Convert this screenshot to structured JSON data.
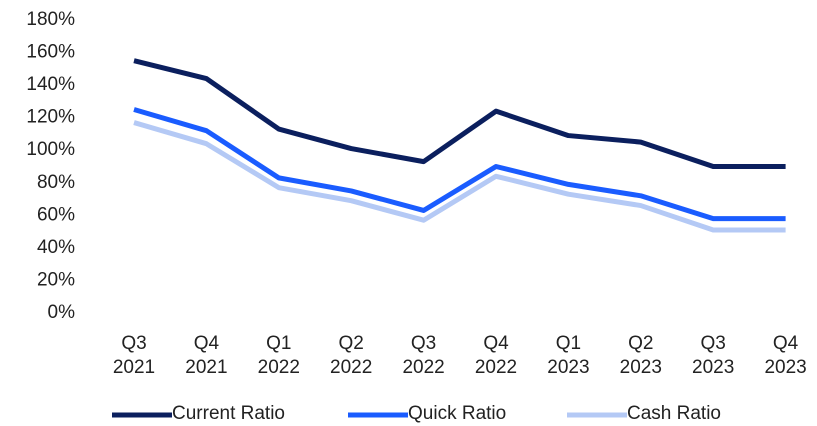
{
  "chart_data": {
    "type": "line",
    "categories": [
      "Q3 2021",
      "Q4 2021",
      "Q1 2022",
      "Q2 2022",
      "Q3 2022",
      "Q4 2022",
      "Q1 2023",
      "Q2 2023",
      "Q3 2023",
      "Q4 2023"
    ],
    "series": [
      {
        "name": "Current Ratio",
        "color": "#0b1f5e",
        "values": [
          155,
          144,
          113,
          101,
          93,
          124,
          109,
          105,
          90,
          90
        ]
      },
      {
        "name": "Quick Ratio",
        "color": "#1a5cff",
        "values": [
          125,
          112,
          83,
          75,
          63,
          90,
          79,
          72,
          58,
          58
        ]
      },
      {
        "name": "Cash Ratio",
        "color": "#b4c9f5",
        "values": [
          117,
          104,
          77,
          69,
          57,
          84,
          73,
          66,
          51,
          51
        ]
      }
    ],
    "ylim": [
      0,
      180
    ],
    "yticks": [
      {
        "value": 0,
        "label": "0%"
      },
      {
        "value": 20,
        "label": "20%"
      },
      {
        "value": 40,
        "label": "40%"
      },
      {
        "value": 60,
        "label": "60%"
      },
      {
        "value": 80,
        "label": "80%"
      },
      {
        "value": 100,
        "label": "100%"
      },
      {
        "value": 120,
        "label": "120%"
      },
      {
        "value": 140,
        "label": "140%"
      },
      {
        "value": 160,
        "label": "160%"
      },
      {
        "value": 180,
        "label": "180%"
      }
    ],
    "grid": false,
    "legend": "bottom"
  }
}
